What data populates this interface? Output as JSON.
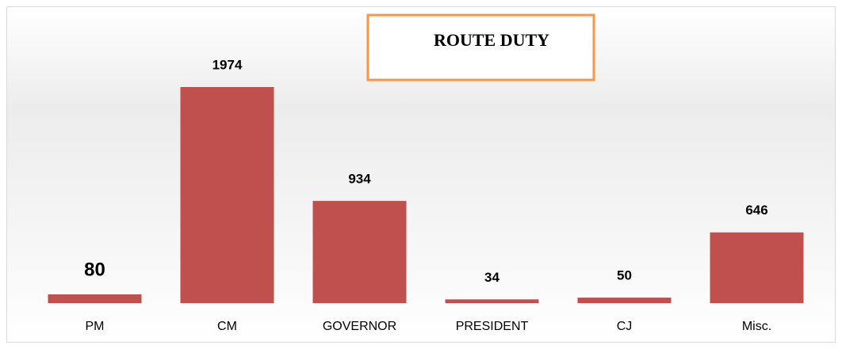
{
  "chart_data": {
    "type": "bar",
    "title": "ROUTE DUTY",
    "categories": [
      "PM",
      "CM",
      "GOVERNOR",
      "PRESIDENT",
      "CJ",
      "Misc."
    ],
    "values": [
      80,
      1974,
      934,
      34,
      50,
      646
    ],
    "color": "#c0504d"
  }
}
